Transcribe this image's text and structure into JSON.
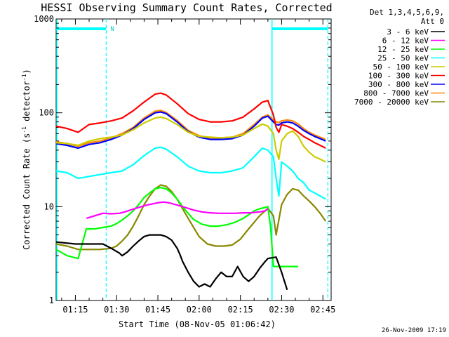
{
  "chart_data": {
    "type": "line",
    "title": "HESSI Observing Summary Count Rates, Corrected",
    "xlabel": "Start Time (08-Nov-05 01:06:42)",
    "ylabel": "Corrected Count Rate (s",
    "ylabel_sup1": "-1",
    "ylabel_mid": " detector",
    "ylabel_sup2": "-1",
    "ylabel_end": ")",
    "y_scale": "log",
    "ylim": [
      1,
      1000
    ],
    "y_ticks": [
      {
        "v": 1,
        "label": "1"
      },
      {
        "v": 10,
        "label": "10"
      },
      {
        "v": 100,
        "label": "100"
      },
      {
        "v": 1000,
        "label": "1000"
      }
    ],
    "xlim_min": [
      68,
      168
    ],
    "x_ticks": [
      {
        "v": 75,
        "label": "01:15"
      },
      {
        "v": 90,
        "label": "01:30"
      },
      {
        "v": 105,
        "label": "01:45"
      },
      {
        "v": 120,
        "label": "02:00"
      },
      {
        "v": 135,
        "label": "02:15"
      },
      {
        "v": 150,
        "label": "02:30"
      },
      {
        "v": 165,
        "label": "02:45"
      }
    ],
    "legend_header": [
      "Det 1,3,4,5,6,9,",
      "Att 0"
    ],
    "night_marker": "N",
    "timestamp": "26-Nov-2009 17:19",
    "series": [
      {
        "name": "3 - 6 keV",
        "color": "#000000",
        "x": [
          68,
          75,
          79,
          85,
          88,
          91,
          92,
          94,
          96,
          98,
          100,
          102,
          104,
          106,
          108,
          110,
          112,
          113,
          114,
          116,
          118,
          120,
          122,
          124,
          126,
          128,
          130,
          132,
          134,
          136,
          138,
          140,
          142,
          144,
          145,
          148,
          150,
          152
        ],
        "y": [
          4.2,
          4.0,
          4.0,
          4.0,
          3.6,
          3.2,
          3.0,
          3.3,
          3.8,
          4.3,
          4.8,
          5.0,
          5.0,
          5.0,
          4.8,
          4.4,
          3.6,
          3.1,
          2.6,
          2.0,
          1.6,
          1.4,
          1.5,
          1.4,
          1.7,
          2.0,
          1.8,
          1.8,
          2.3,
          1.8,
          1.6,
          1.8,
          2.2,
          2.6,
          2.8,
          2.9,
          2.0,
          1.3
        ]
      },
      {
        "name": "6 - 12 keV",
        "color": "#ff00ff",
        "x": [
          79,
          85,
          88,
          91,
          93,
          95,
          97,
          99,
          101,
          103,
          105,
          107,
          109,
          111,
          113,
          115,
          118,
          121,
          124,
          127,
          130,
          133,
          136,
          139,
          142,
          144,
          145
        ],
        "y": [
          7.5,
          8.5,
          8.4,
          8.5,
          8.8,
          9.2,
          9.6,
          10.0,
          10.4,
          10.7,
          11.0,
          11.2,
          11.0,
          10.6,
          10.2,
          9.8,
          9.2,
          8.8,
          8.6,
          8.5,
          8.5,
          8.5,
          8.6,
          8.6,
          8.8,
          9.0,
          9.5
        ]
      },
      {
        "name": "12 - 25 keV",
        "color": "#00ff00",
        "x": [
          68,
          72,
          76,
          79,
          82,
          85,
          88,
          90,
          92,
          94,
          96,
          98,
          100,
          102,
          104,
          106,
          108,
          110,
          112,
          114,
          116,
          118,
          121,
          124,
          127,
          130,
          133,
          136,
          138,
          140,
          142,
          144,
          145,
          146,
          147,
          152,
          156
        ],
        "y": [
          3.5,
          3.0,
          2.8,
          5.8,
          5.8,
          6.0,
          6.2,
          6.6,
          7.2,
          8.0,
          9.0,
          10.5,
          12.5,
          14.0,
          15.5,
          16.0,
          15.5,
          14.0,
          12.0,
          10.0,
          8.5,
          7.3,
          6.5,
          6.2,
          6.2,
          6.4,
          6.8,
          7.5,
          8.2,
          9.0,
          9.5,
          9.8,
          10.0,
          6.0,
          2.3,
          2.3,
          2.3
        ]
      },
      {
        "name": "25 - 50 keV",
        "color": "#00ffff",
        "x": [
          68,
          72,
          76,
          80,
          84,
          88,
          92,
          96,
          100,
          104,
          106,
          108,
          112,
          116,
          120,
          124,
          128,
          132,
          136,
          140,
          143,
          145,
          147,
          148,
          149,
          150,
          152,
          154,
          156,
          158,
          160,
          162,
          164,
          166
        ],
        "y": [
          24,
          23,
          20,
          21,
          22,
          23,
          24,
          28,
          35,
          42,
          43,
          41,
          34,
          27,
          24,
          23,
          23,
          24,
          26,
          34,
          42,
          40,
          34,
          20,
          13,
          30,
          27,
          24,
          20,
          18,
          15,
          14,
          13,
          12
        ]
      },
      {
        "name": "50 - 100 keV",
        "color": "#cccc00",
        "x": [
          68,
          72,
          76,
          80,
          84,
          88,
          92,
          96,
          100,
          104,
          106,
          108,
          112,
          116,
          120,
          124,
          128,
          132,
          136,
          140,
          143,
          145,
          147,
          148,
          149,
          150,
          152,
          154,
          156,
          158,
          160,
          162,
          164,
          166
        ],
        "y": [
          48,
          47,
          45,
          50,
          53,
          55,
          58,
          66,
          78,
          88,
          90,
          87,
          75,
          62,
          56,
          55,
          54,
          55,
          58,
          68,
          76,
          72,
          60,
          40,
          32,
          50,
          60,
          64,
          56,
          44,
          38,
          34,
          32,
          30
        ]
      },
      {
        "name": "100 - 300 keV",
        "color": "#ff0000",
        "x": [
          68,
          72,
          76,
          80,
          84,
          88,
          92,
          96,
          100,
          104,
          106,
          108,
          112,
          116,
          120,
          124,
          128,
          132,
          136,
          140,
          143,
          145,
          147,
          148,
          149,
          150,
          152,
          154,
          156,
          158,
          160,
          162,
          164,
          166
        ],
        "y": [
          72,
          68,
          62,
          75,
          78,
          82,
          88,
          105,
          130,
          158,
          162,
          155,
          125,
          98,
          85,
          80,
          80,
          82,
          90,
          110,
          130,
          135,
          95,
          70,
          62,
          75,
          72,
          68,
          62,
          56,
          52,
          48,
          45,
          42
        ]
      },
      {
        "name": "300 - 800 keV",
        "color": "#0000ff",
        "x": [
          68,
          72,
          76,
          80,
          84,
          88,
          92,
          96,
          100,
          104,
          106,
          108,
          112,
          116,
          120,
          124,
          128,
          132,
          136,
          140,
          143,
          145,
          147,
          148,
          149,
          150,
          152,
          154,
          156,
          158,
          160,
          162,
          164,
          166
        ],
        "y": [
          47,
          45,
          42,
          46,
          48,
          52,
          58,
          68,
          85,
          100,
          102,
          98,
          80,
          63,
          55,
          52,
          52,
          53,
          58,
          72,
          88,
          92,
          80,
          75,
          74,
          78,
          80,
          78,
          72,
          65,
          60,
          56,
          53,
          50
        ]
      },
      {
        "name": "800 - 7000 keV",
        "color": "#ff8800",
        "x": [
          68,
          72,
          76,
          80,
          84,
          88,
          92,
          96,
          100,
          104,
          106,
          108,
          112,
          116,
          120,
          124,
          128,
          132,
          136,
          140,
          143,
          145,
          147,
          148,
          149,
          150,
          152,
          154,
          156,
          158,
          160,
          162,
          164,
          166
        ],
        "y": [
          49,
          47,
          44,
          48,
          50,
          54,
          60,
          70,
          88,
          104,
          106,
          101,
          83,
          65,
          57,
          54,
          54,
          55,
          60,
          75,
          90,
          95,
          84,
          80,
          79,
          82,
          84,
          82,
          76,
          68,
          62,
          58,
          55,
          52
        ]
      },
      {
        "name": "7000 - 20000 keV",
        "color": "#888800",
        "x": [
          68,
          72,
          76,
          80,
          84,
          88,
          90,
          92,
          94,
          96,
          98,
          100,
          102,
          104,
          106,
          108,
          110,
          112,
          114,
          116,
          118,
          120,
          123,
          126,
          129,
          132,
          135,
          138,
          140,
          142,
          144,
          145,
          147,
          148,
          150,
          152,
          154,
          156,
          158,
          160,
          162,
          164,
          166
        ],
        "y": [
          4.0,
          3.8,
          3.5,
          3.5,
          3.5,
          3.6,
          3.8,
          4.3,
          5.0,
          6.2,
          8.0,
          10.5,
          13.0,
          15.5,
          17.0,
          16.5,
          14.5,
          12.0,
          9.5,
          7.5,
          6.0,
          4.8,
          4.0,
          3.8,
          3.8,
          3.9,
          4.5,
          5.8,
          6.8,
          8.0,
          9.0,
          9.6,
          8.0,
          5.0,
          10.5,
          13.5,
          15.5,
          15.0,
          13.0,
          11.5,
          10.0,
          8.5,
          7.0
        ]
      }
    ]
  }
}
